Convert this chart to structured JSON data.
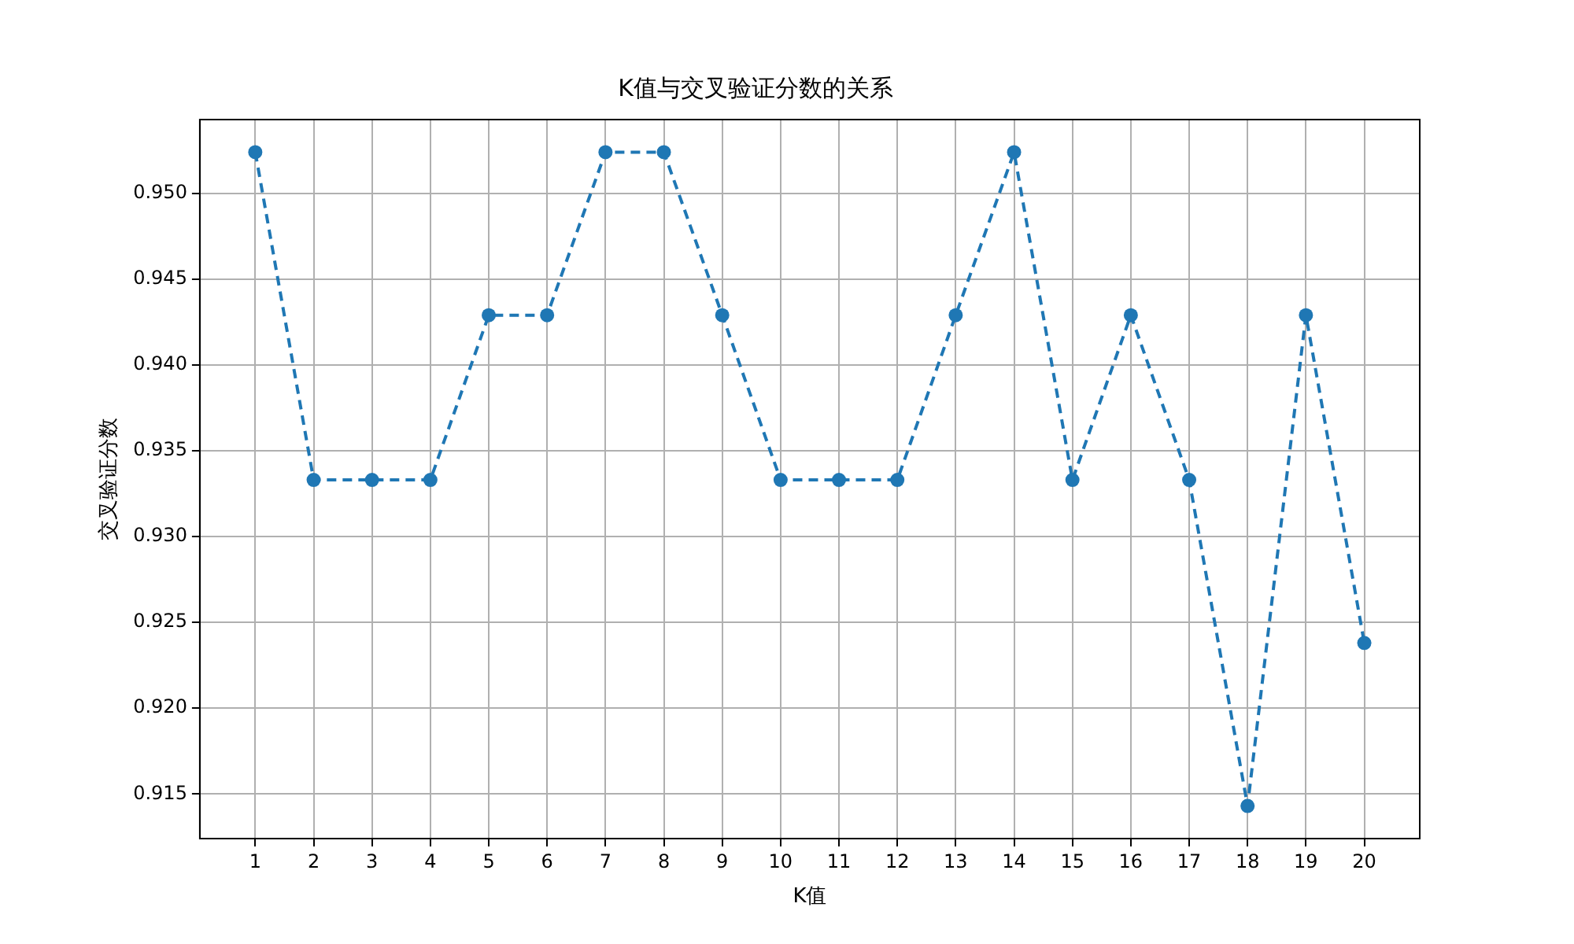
{
  "chart_data": {
    "type": "line",
    "title": "K值与交叉验证分数的关系",
    "xlabel": "K值",
    "ylabel": "交叉验证分数",
    "x": [
      1,
      2,
      3,
      4,
      5,
      6,
      7,
      8,
      9,
      10,
      11,
      12,
      13,
      14,
      15,
      16,
      17,
      18,
      19,
      20
    ],
    "series": [
      {
        "color": "#1f77b4",
        "values": [
          0.9524,
          0.9333,
          0.9333,
          0.9333,
          0.9429,
          0.9429,
          0.9524,
          0.9524,
          0.9429,
          0.9333,
          0.9333,
          0.9333,
          0.9429,
          0.9524,
          0.9333,
          0.9429,
          0.9333,
          0.9143,
          0.9429,
          0.9238
        ]
      }
    ],
    "xlim": [
      0.05,
      20.95
    ],
    "xticks": [
      1,
      2,
      3,
      4,
      5,
      6,
      7,
      8,
      9,
      10,
      11,
      12,
      13,
      14,
      15,
      16,
      17,
      18,
      19,
      20
    ],
    "ylim": [
      0.9124,
      0.9543
    ],
    "yticks": [
      {
        "value": 0.915,
        "label": "0.915"
      },
      {
        "value": 0.92,
        "label": "0.920"
      },
      {
        "value": 0.925,
        "label": "0.925"
      },
      {
        "value": 0.93,
        "label": "0.930"
      },
      {
        "value": 0.935,
        "label": "0.935"
      },
      {
        "value": 0.94,
        "label": "0.940"
      },
      {
        "value": 0.945,
        "label": "0.945"
      },
      {
        "value": 0.95,
        "label": "0.950"
      }
    ],
    "grid": true,
    "legend": false,
    "marker": "circle",
    "line_style": "dashed"
  }
}
